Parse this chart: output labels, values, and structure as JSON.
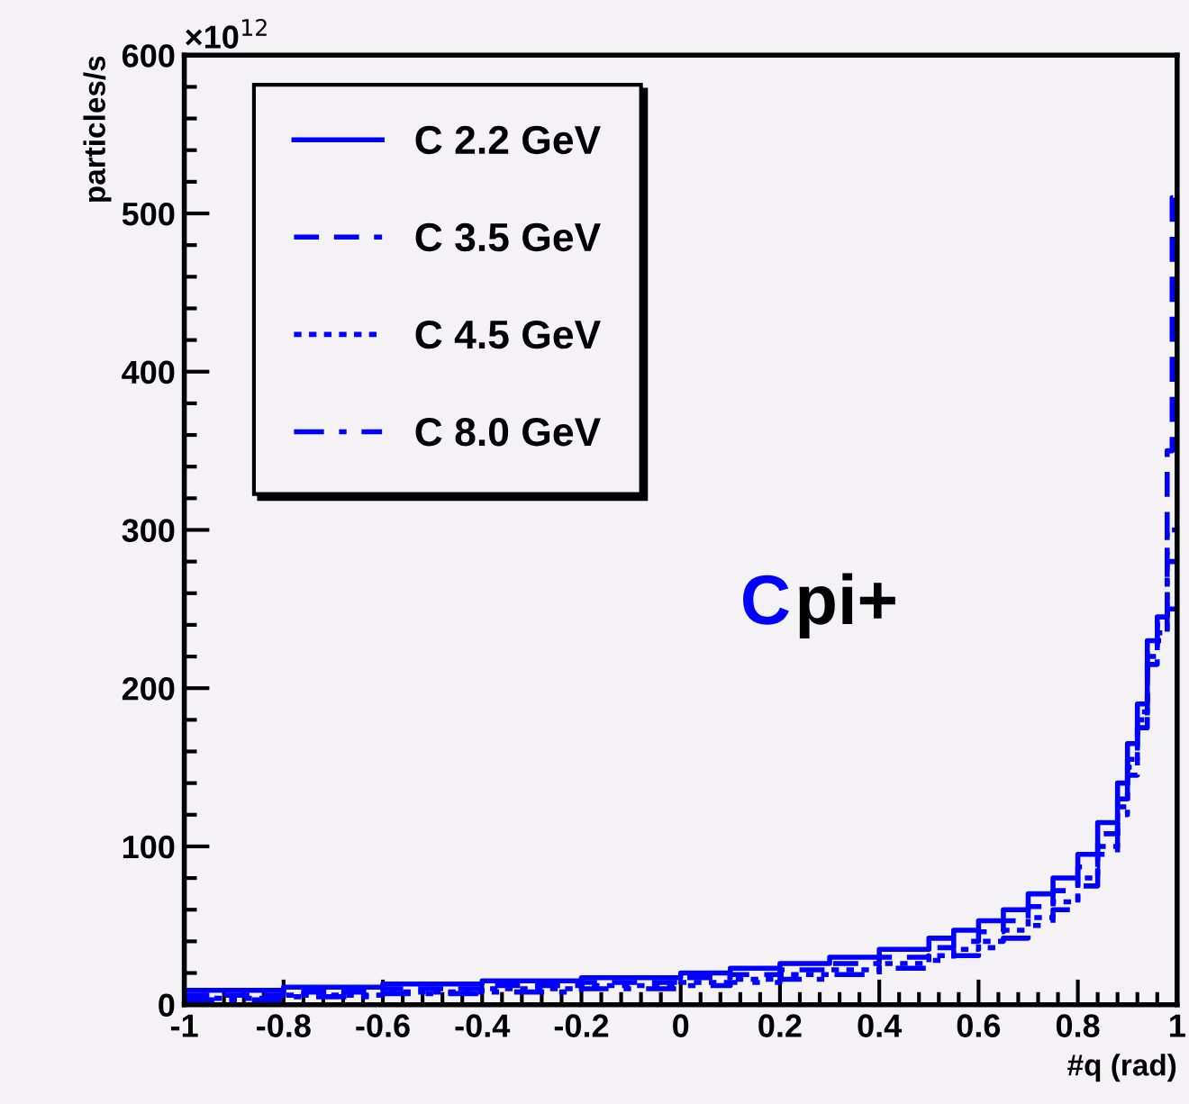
{
  "chart_data": {
    "type": "step",
    "xlabel": "#q (rad)",
    "ylabel": "particles/s",
    "annotations": [
      "C",
      "pi+",
      "×10$^{12}$"
    ],
    "xlim": [
      -1,
      1
    ],
    "ylim": [
      0,
      600
    ],
    "xticks": [
      {
        "value": -1,
        "label": "-1"
      },
      {
        "value": -0.8,
        "label": "-0.8"
      },
      {
        "value": -0.6,
        "label": "-0.6"
      },
      {
        "value": -0.4,
        "label": "-0.4"
      },
      {
        "value": -0.2,
        "label": "-0.2"
      },
      0,
      0.2,
      0.4,
      0.6,
      0.8,
      1
    ],
    "yticks": [
      0,
      100,
      200,
      300,
      400,
      500,
      600
    ],
    "grid": false,
    "legend": "top left",
    "series": [
      {
        "name": "C 2.2 GeV",
        "color": "#0000ff",
        "line_style": "solid",
        "x": [
          -1,
          -0.8,
          -0.6,
          -0.4,
          -0.2,
          0,
          0.1,
          0.2,
          0.3,
          0.4,
          0.5,
          0.55,
          0.6,
          0.65,
          0.7,
          0.75,
          0.8,
          0.84,
          0.88,
          0.9,
          0.92,
          0.94,
          0.96,
          0.98,
          1
        ],
        "values": [
          9,
          11,
          13,
          15,
          17,
          20,
          23,
          26,
          30,
          35,
          42,
          47,
          53,
          60,
          70,
          80,
          95,
          115,
          140,
          165,
          190,
          230,
          245,
          250,
          250
        ]
      },
      {
        "name": "C 3.5 GeV",
        "color": "#0000ff",
        "line_style": "dashed",
        "x": [
          -1,
          -0.8,
          -0.6,
          -0.4,
          -0.2,
          0,
          0.1,
          0.2,
          0.3,
          0.4,
          0.5,
          0.55,
          0.6,
          0.65,
          0.7,
          0.75,
          0.8,
          0.84,
          0.88,
          0.9,
          0.92,
          0.94,
          0.96,
          0.98,
          0.99,
          1
        ],
        "values": [
          6,
          8,
          10,
          12,
          14,
          17,
          19,
          22,
          26,
          30,
          36,
          40,
          46,
          53,
          62,
          72,
          87,
          108,
          130,
          155,
          185,
          225,
          240,
          350,
          510,
          510
        ]
      },
      {
        "name": "C 4.5 GeV",
        "color": "#0000ff",
        "line_style": "dotted",
        "x": [
          -1,
          -0.8,
          -0.6,
          -0.4,
          -0.2,
          0,
          0.1,
          0.2,
          0.3,
          0.4,
          0.5,
          0.55,
          0.6,
          0.65,
          0.7,
          0.75,
          0.8,
          0.84,
          0.88,
          0.9,
          0.92,
          0.94,
          0.96,
          0.98,
          1
        ],
        "values": [
          4,
          6,
          8,
          10,
          12,
          14,
          16,
          19,
          22,
          26,
          31,
          35,
          40,
          47,
          55,
          65,
          80,
          100,
          125,
          150,
          180,
          220,
          235,
          300,
          300
        ]
      },
      {
        "name": "C 8.0 GeV",
        "color": "#0000ff",
        "line_style": "dashdot",
        "x": [
          -1,
          -0.8,
          -0.6,
          -0.4,
          -0.2,
          0,
          0.1,
          0.2,
          0.3,
          0.4,
          0.5,
          0.55,
          0.6,
          0.65,
          0.7,
          0.75,
          0.8,
          0.84,
          0.88,
          0.9,
          0.92,
          0.94,
          0.96,
          0.98,
          1
        ],
        "values": [
          3,
          5,
          7,
          8,
          10,
          12,
          14,
          16,
          19,
          23,
          28,
          31,
          36,
          42,
          50,
          60,
          75,
          95,
          120,
          145,
          175,
          215,
          230,
          280,
          280
        ]
      }
    ]
  }
}
